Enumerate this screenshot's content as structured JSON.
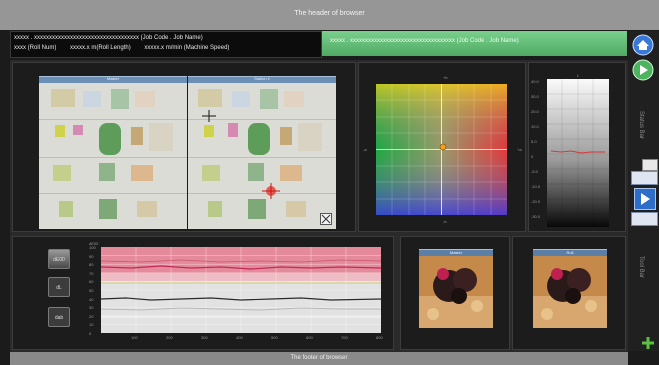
{
  "header": {
    "title": "The header of browser"
  },
  "info": {
    "line1": "xxxxx . xxxxxxxxxxxxxxxxxxxxxxxxxxxxxxxxxxx (Job Code . Job Name)",
    "roll_num": "xxxx (Roll Num)",
    "roll_length": "xxxxx.x m(Roll Length)",
    "machine_speed": "xxxxx.x m/min (Machine Speed)"
  },
  "job_bar": {
    "text": "xxxxx . xxxxxxxxxxxxxxxxxxxxxxxxxxxxxxxxxxx (Job Code . Job Name)"
  },
  "viewer": {
    "left_title": "Master",
    "right_title": "Station 2"
  },
  "color_space": {
    "top": "+b",
    "bottom": "-b",
    "left": "-a",
    "right": "+a"
  },
  "lightness": {
    "title": "L",
    "ticks": [
      "40.0",
      "30.0",
      "20.0",
      "10.0",
      "5.0",
      "0",
      "-5.0",
      "-10.0",
      "-20.0",
      "-30.0"
    ]
  },
  "trend": {
    "y_label": "dE00",
    "y_ticks": [
      "100",
      "90",
      "80",
      "70",
      "60",
      "50",
      "40",
      "30",
      "20",
      "10",
      "0"
    ],
    "x_ticks": [
      "100",
      "200",
      "300",
      "400",
      "500",
      "600",
      "700",
      "800"
    ],
    "buttons": [
      "dE00",
      "dL",
      "dab"
    ]
  },
  "thumbs": {
    "left": "Master",
    "right": "Roll"
  },
  "side_labels": {
    "upper": "Status Bar",
    "lower": "Tool Bar"
  },
  "footer": {
    "title": "The footer of browser"
  },
  "colors": {
    "accent_green": "#5cbf6f",
    "band_red": "#e58a9b",
    "chrome": "#969696"
  }
}
